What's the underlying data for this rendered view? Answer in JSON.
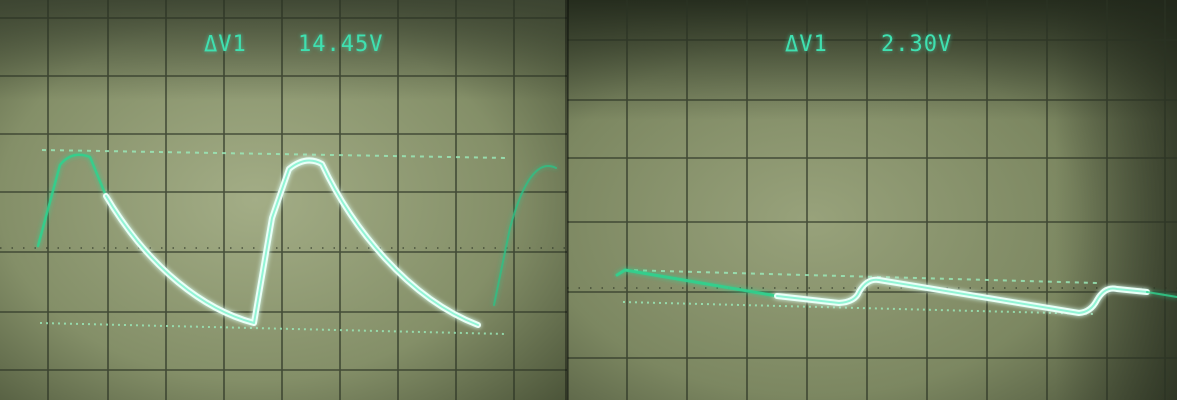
{
  "left_screen": {
    "readout_label": "ΔV1",
    "readout_value": "14.45V"
  },
  "right_screen": {
    "readout_label": "ΔV1",
    "readout_value": "2.30V"
  },
  "colors": {
    "trace": "#e8fff6",
    "trace_glow": "#35e0b0",
    "cursor": "#8ee6b8",
    "grid": "#1d2419",
    "screen": "#8a9670"
  }
}
